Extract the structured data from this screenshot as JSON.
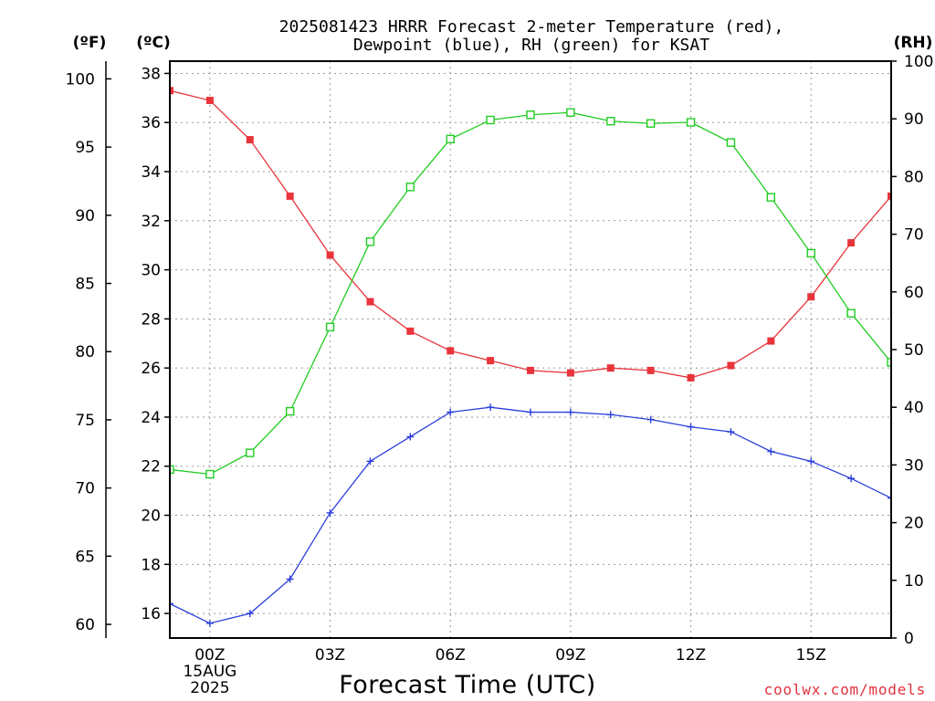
{
  "chart_data": {
    "type": "line",
    "title_lines": [
      "2025081423 HRRR Forecast 2-meter Temperature (red),",
      "Dewpoint (blue), RH (green) for KSAT"
    ],
    "xlabel": "Forecast Time (UTC)",
    "y_units_left_outer": "(ºF)",
    "y_units_left_inner": "(ºC)",
    "y_units_right": "(RH)",
    "x_range": [
      -1,
      17
    ],
    "x_ticks": [
      {
        "hour": 0,
        "lines": [
          "00Z",
          "15AUG",
          "2025"
        ]
      },
      {
        "hour": 3,
        "lines": [
          "03Z"
        ]
      },
      {
        "hour": 6,
        "lines": [
          "06Z"
        ]
      },
      {
        "hour": 9,
        "lines": [
          "09Z"
        ]
      },
      {
        "hour": 12,
        "lines": [
          "12Z"
        ]
      },
      {
        "hour": 15,
        "lines": [
          "15Z"
        ]
      }
    ],
    "y_celsius": {
      "range": [
        15,
        38.5
      ],
      "ticks": [
        16,
        18,
        20,
        22,
        24,
        26,
        28,
        30,
        32,
        34,
        36,
        38
      ]
    },
    "y_fahrenheit": {
      "ticks": [
        60,
        65,
        70,
        75,
        80,
        85,
        90,
        95,
        100
      ]
    },
    "y_rh": {
      "range": [
        0,
        100
      ],
      "ticks": [
        0,
        10,
        20,
        30,
        40,
        50,
        60,
        70,
        80,
        90,
        100
      ]
    },
    "x_hours": [
      -1,
      0,
      1,
      2,
      3,
      4,
      5,
      6,
      7,
      8,
      9,
      10,
      11,
      12,
      13,
      14,
      15,
      16,
      17
    ],
    "series": [
      {
        "name": "Temperature",
        "axis": "celsius",
        "color": "#e8343a",
        "marker": "filled-square",
        "values": [
          37.3,
          36.9,
          35.3,
          33.0,
          30.6,
          28.7,
          27.5,
          26.7,
          26.3,
          25.9,
          25.8,
          26.0,
          25.9,
          25.6,
          26.1,
          27.1,
          28.9,
          31.1,
          33.0
        ]
      },
      {
        "name": "Dewpoint",
        "axis": "celsius",
        "color": "#2a3fdc",
        "marker": "plus",
        "values": [
          16.4,
          15.6,
          16.0,
          17.4,
          20.1,
          22.2,
          23.2,
          24.2,
          24.4,
          24.2,
          24.2,
          24.1,
          23.9,
          23.6,
          23.4,
          22.6,
          22.2,
          21.5,
          20.7
        ]
      },
      {
        "name": "RH",
        "axis": "rh",
        "color": "#22cc22",
        "marker": "open-square",
        "values": [
          29.2,
          28.4,
          32.1,
          39.3,
          53.9,
          68.7,
          78.2,
          86.5,
          89.8,
          90.7,
          91.1,
          89.6,
          89.2,
          89.4,
          85.9,
          76.4,
          66.7,
          56.3,
          47.8
        ]
      }
    ],
    "grid": true,
    "credit": "coolwx.com/models"
  }
}
